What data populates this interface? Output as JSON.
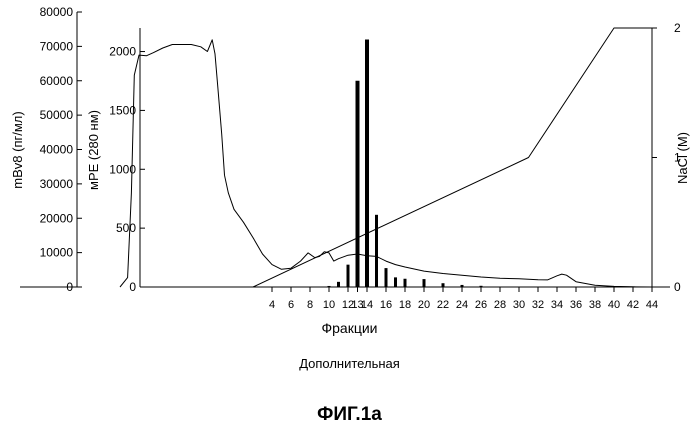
{
  "figure": {
    "title": "ФИГ.1а",
    "subtitle": "Дополнительная"
  },
  "chart_data": {
    "type": "bar",
    "title": "",
    "xlabel": "Фракции",
    "x_ticks": [
      4,
      6,
      8,
      10,
      12,
      13,
      14,
      16,
      18,
      20,
      22,
      24,
      26,
      28,
      30,
      32,
      34,
      36,
      38,
      40,
      42,
      44
    ],
    "y_axes": {
      "mbv8": {
        "label": "mBv8 (пг/мл)",
        "ticks": [
          0,
          10000,
          20000,
          30000,
          40000,
          50000,
          60000,
          70000,
          80000
        ],
        "ylim": [
          0,
          80000
        ]
      },
      "mpe": {
        "label": "мРЕ (280 нм)",
        "ticks": [
          0,
          500,
          1000,
          1500,
          2000
        ],
        "ylim": [
          0,
          2200
        ]
      },
      "nacl": {
        "label": "NaCl (M)",
        "ticks": [
          0,
          1,
          2
        ],
        "ylim": [
          0,
          2
        ]
      }
    },
    "series": [
      {
        "name": "mBv8",
        "kind": "bar",
        "axis": "mbv8",
        "x": [
          10,
          11,
          12,
          13,
          14,
          15,
          16,
          17,
          18,
          20,
          22,
          24,
          26
        ],
        "values": [
          300,
          1500,
          6500,
          60000,
          72000,
          21000,
          5500,
          2800,
          2400,
          2300,
          1100,
          600,
          350
        ]
      },
      {
        "name": "мРЕ (280 нм)",
        "kind": "line",
        "axis": "mpe",
        "x": [
          -12,
          -11.2,
          -10.8,
          -10.5,
          -10,
          -9.2,
          -8.5,
          -7.5,
          -6.5,
          -5.5,
          -4.5,
          -3.5,
          -2.8,
          -2.3,
          -2,
          -1.7,
          -1.3,
          -1,
          -0.6,
          0,
          1,
          2,
          3,
          4,
          5,
          6,
          7,
          7.8,
          8.5,
          9,
          9.5,
          10,
          10.5,
          11,
          12,
          13,
          14,
          15,
          16,
          17,
          18,
          20,
          22,
          24,
          26,
          28,
          30,
          32,
          33,
          34,
          34.5,
          35,
          36,
          38,
          40,
          42,
          44
        ],
        "values": [
          0,
          80,
          800,
          1800,
          1970,
          1965,
          1990,
          2030,
          2060,
          2060,
          2060,
          2040,
          2000,
          2100,
          1980,
          1700,
          1300,
          950,
          800,
          660,
          550,
          420,
          280,
          190,
          150,
          160,
          220,
          290,
          250,
          260,
          300,
          290,
          220,
          240,
          270,
          280,
          265,
          260,
          220,
          190,
          170,
          135,
          115,
          100,
          85,
          75,
          70,
          62,
          60,
          95,
          110,
          100,
          45,
          15,
          5,
          2,
          0
        ]
      },
      {
        "name": "NaCl (M)",
        "kind": "line",
        "axis": "nacl",
        "x": [
          2,
          31,
          40,
          44
        ],
        "values": [
          0,
          1,
          2,
          2
        ]
      }
    ],
    "grid": false,
    "legend": "none"
  }
}
